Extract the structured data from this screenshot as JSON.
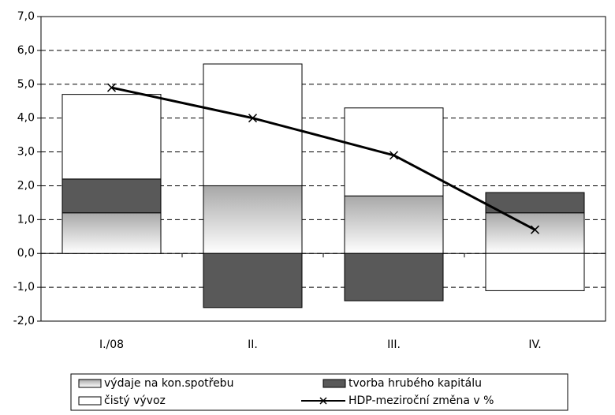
{
  "chart_data": {
    "type": "stacked-bar-line",
    "categories": [
      "I./08",
      "II.",
      "III.",
      "IV."
    ],
    "series": [
      {
        "name": "výdaje na kon.spotřebu",
        "color": "#b0b0b0",
        "kind": "bar",
        "values": [
          1.2,
          2.0,
          1.7,
          1.2
        ]
      },
      {
        "name": "tvorba hrubého kapitálu",
        "color": "#595959",
        "kind": "bar",
        "values": [
          1.0,
          -1.6,
          -1.4,
          0.6
        ]
      },
      {
        "name": "čistý vývoz",
        "color": "#ffffff",
        "kind": "bar",
        "values": [
          2.5,
          3.6,
          2.6,
          -1.1
        ]
      },
      {
        "name": "HDP-meziroční změna v %",
        "color": "#000000",
        "kind": "line",
        "values": [
          4.9,
          4.0,
          2.9,
          0.7
        ]
      }
    ],
    "ylim": [
      -2,
      7
    ],
    "yticks": [
      {
        "value": -2,
        "label": "-2,0"
      },
      {
        "value": -1,
        "label": "-1,0"
      },
      {
        "value": 0,
        "label": "0,0"
      },
      {
        "value": 1,
        "label": "1,0"
      },
      {
        "value": 2,
        "label": "2,0"
      },
      {
        "value": 3,
        "label": "3,0"
      },
      {
        "value": 4,
        "label": "4,0"
      },
      {
        "value": 5,
        "label": "5,0"
      },
      {
        "value": 6,
        "label": "6,0"
      },
      {
        "value": 7,
        "label": "7,0"
      }
    ],
    "grid": true
  }
}
